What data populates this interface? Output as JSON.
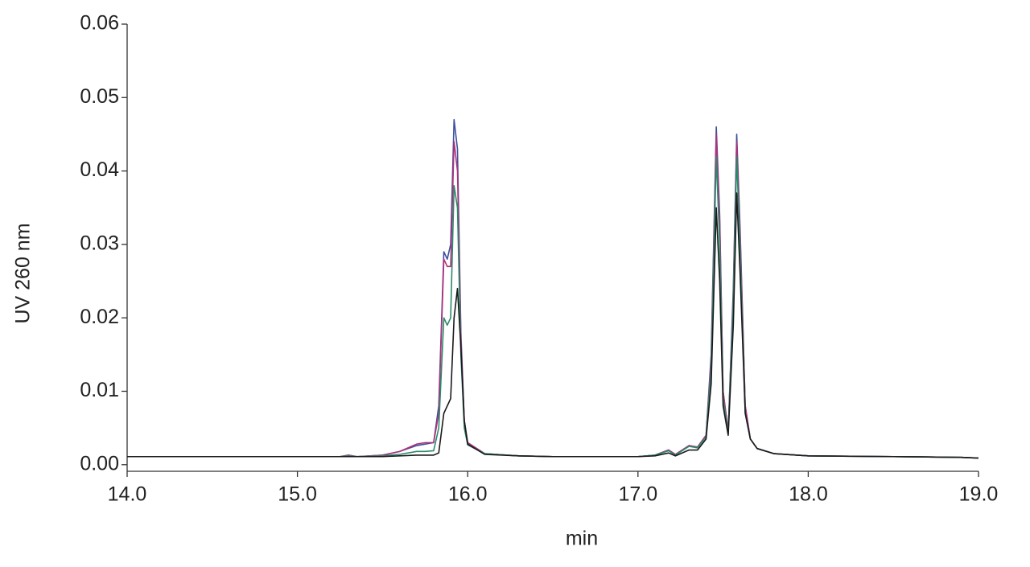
{
  "chart_data": {
    "type": "line",
    "x_label": "min",
    "y_label": "UV 260 nm",
    "x": [
      14.0,
      14.5,
      15.0,
      15.25,
      15.3,
      15.35,
      15.5,
      15.6,
      15.7,
      15.75,
      15.8,
      15.83,
      15.86,
      15.88,
      15.9,
      15.92,
      15.94,
      15.96,
      15.98,
      16.0,
      16.1,
      16.3,
      16.5,
      17.0,
      17.1,
      17.18,
      17.22,
      17.3,
      17.35,
      17.4,
      17.43,
      17.46,
      17.48,
      17.5,
      17.53,
      17.56,
      17.58,
      17.6,
      17.63,
      17.66,
      17.7,
      17.8,
      18.0,
      18.5,
      18.9,
      19.0
    ],
    "series": [
      {
        "color": "#3d4f9e",
        "values": [
          0.0011,
          0.0011,
          0.0011,
          0.0011,
          0.0013,
          0.0011,
          0.0013,
          0.0018,
          0.0026,
          0.0028,
          0.003,
          0.008,
          0.029,
          0.028,
          0.03,
          0.047,
          0.043,
          0.018,
          0.006,
          0.003,
          0.0015,
          0.0012,
          0.0011,
          0.0011,
          0.0013,
          0.002,
          0.0014,
          0.0026,
          0.0024,
          0.004,
          0.015,
          0.046,
          0.034,
          0.01,
          0.0045,
          0.024,
          0.045,
          0.032,
          0.008,
          0.0035,
          0.0022,
          0.0015,
          0.0012,
          0.0011,
          0.001,
          0.0009
        ]
      },
      {
        "color": "#b0307a",
        "values": [
          0.0011,
          0.0011,
          0.0011,
          0.0011,
          0.0013,
          0.0011,
          0.0013,
          0.0018,
          0.0028,
          0.003,
          0.003,
          0.007,
          0.028,
          0.027,
          0.027,
          0.044,
          0.04,
          0.017,
          0.006,
          0.003,
          0.0015,
          0.0012,
          0.0011,
          0.0011,
          0.0013,
          0.002,
          0.0014,
          0.0026,
          0.0024,
          0.004,
          0.014,
          0.045,
          0.033,
          0.01,
          0.0045,
          0.023,
          0.044,
          0.031,
          0.008,
          0.0035,
          0.0022,
          0.0015,
          0.0012,
          0.0011,
          0.001,
          0.0009
        ]
      },
      {
        "color": "#2a8a6a",
        "values": [
          0.0011,
          0.0011,
          0.0011,
          0.0011,
          0.0012,
          0.0011,
          0.0012,
          0.0014,
          0.0018,
          0.0018,
          0.0019,
          0.005,
          0.02,
          0.019,
          0.02,
          0.038,
          0.035,
          0.015,
          0.005,
          0.0027,
          0.0015,
          0.0012,
          0.0011,
          0.0011,
          0.0013,
          0.0019,
          0.0013,
          0.0025,
          0.0023,
          0.0038,
          0.013,
          0.042,
          0.03,
          0.009,
          0.0042,
          0.022,
          0.042,
          0.029,
          0.007,
          0.0035,
          0.0022,
          0.0015,
          0.0012,
          0.0011,
          0.001,
          0.0009
        ]
      },
      {
        "color": "#1a1a1a",
        "values": [
          0.0011,
          0.0011,
          0.0011,
          0.0011,
          0.0011,
          0.0011,
          0.0011,
          0.0012,
          0.0013,
          0.0013,
          0.0013,
          0.0016,
          0.007,
          0.008,
          0.009,
          0.02,
          0.024,
          0.016,
          0.006,
          0.0028,
          0.0014,
          0.0012,
          0.0011,
          0.0011,
          0.0012,
          0.0016,
          0.0012,
          0.002,
          0.002,
          0.0035,
          0.011,
          0.035,
          0.025,
          0.008,
          0.004,
          0.019,
          0.037,
          0.026,
          0.007,
          0.0035,
          0.0022,
          0.0015,
          0.0012,
          0.0011,
          0.001,
          0.0009
        ]
      }
    ],
    "xlim": [
      14.0,
      19.0
    ],
    "xticks": [
      {
        "value": 14,
        "label": "14.0"
      },
      {
        "value": 15,
        "label": "15.0"
      },
      {
        "value": 16,
        "label": "16.0"
      },
      {
        "value": 17,
        "label": "17.0"
      },
      {
        "value": 18,
        "label": "18.0"
      },
      {
        "value": 19,
        "label": "19.0"
      }
    ],
    "ylim": [
      -0.0009,
      0.06
    ],
    "yticks": [
      {
        "value": 0,
        "label": "0.00"
      },
      0.01,
      0.02,
      0.03,
      0.04,
      0.05,
      0.06
    ],
    "grid": false
  }
}
